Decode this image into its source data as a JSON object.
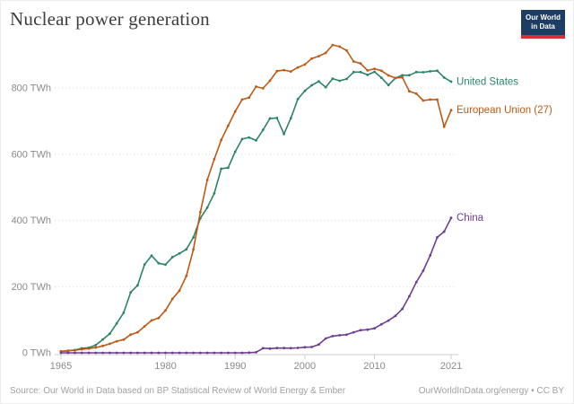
{
  "header": {
    "title": "Nuclear power generation"
  },
  "logo": {
    "line1": "Our World",
    "line2": "in Data",
    "bg_color": "#1d3d63",
    "bar_color": "#dc2e32"
  },
  "footer": {
    "source": "Source: Our World in Data based on BP Statistical Review of World Energy & Ember",
    "link": "OurWorldInData.org/energy • CC BY"
  },
  "chart_data": {
    "type": "line",
    "title": "Nuclear power generation",
    "unit": "TWh",
    "xlim": [
      1965,
      2021
    ],
    "ylim": [
      0,
      950
    ],
    "grid": "horizontal dotted",
    "legend_position": "right-of-line-ends",
    "y_ticks": [
      0,
      200,
      400,
      600,
      800
    ],
    "y_tick_labels": [
      "0 TWh",
      "200 TWh",
      "400 TWh",
      "600 TWh",
      "800 TWh"
    ],
    "x_ticks": [
      1965,
      1980,
      1990,
      2000,
      2010,
      2021
    ],
    "x_tick_labels": [
      "1965",
      "1980",
      "1990",
      "2000",
      "2010",
      "2021"
    ],
    "axis_color": "#cccccc",
    "grid_color": "#dadada",
    "tick_label_color": "#8a8a8a",
    "years": [
      1965,
      1966,
      1967,
      1968,
      1969,
      1970,
      1971,
      1972,
      1973,
      1974,
      1975,
      1976,
      1977,
      1978,
      1979,
      1980,
      1981,
      1982,
      1983,
      1984,
      1985,
      1986,
      1987,
      1988,
      1989,
      1990,
      1991,
      1992,
      1993,
      1994,
      1995,
      1996,
      1997,
      1998,
      1999,
      2000,
      2001,
      2002,
      2003,
      2004,
      2005,
      2006,
      2007,
      2008,
      2009,
      2010,
      2011,
      2012,
      2013,
      2014,
      2015,
      2016,
      2017,
      2018,
      2019,
      2020,
      2021
    ],
    "series": [
      {
        "name": "United States",
        "color": "#2C8465",
        "values": [
          3.9,
          6.4,
          8.3,
          13.8,
          15.5,
          23.3,
          40.5,
          57.7,
          88.8,
          121.1,
          182.8,
          203.6,
          266.8,
          293.7,
          270.7,
          266.4,
          289.2,
          300.3,
          312.6,
          348.6,
          406.5,
          438.6,
          481.6,
          556.3,
          559.3,
          607.4,
          645.7,
          650.6,
          641.6,
          673.4,
          708.0,
          709.4,
          661.0,
          709.0,
          766.3,
          791.6,
          808.2,
          819.8,
          802.5,
          828.3,
          821.8,
          827.4,
          848.1,
          848.0,
          839.7,
          848.9,
          830.9,
          808.7,
          829.7,
          838.5,
          838.4,
          848.0,
          847.5,
          850.5,
          852.0,
          831.5,
          819.2
        ]
      },
      {
        "name": "European Union (27)",
        "color": "#BE5915",
        "values": [
          4.5,
          6.0,
          8.0,
          10.5,
          13.0,
          16.0,
          21.0,
          27.0,
          35.0,
          40.0,
          55.0,
          62.0,
          80.0,
          98.0,
          105.0,
          128.0,
          163.0,
          188.0,
          232.0,
          312.0,
          425.0,
          522.0,
          585.0,
          643.0,
          686.0,
          729.0,
          765.0,
          771.0,
          804.0,
          799.0,
          822.0,
          851.0,
          854.0,
          850.0,
          862.0,
          871.0,
          889.0,
          896.0,
          906.0,
          930.0,
          925.0,
          913.0,
          880.0,
          874.0,
          853.0,
          858.0,
          852.0,
          838.0,
          830.0,
          832.0,
          790.0,
          783.0,
          762.0,
          765.0,
          765.0,
          683.0,
          733.0
        ]
      },
      {
        "name": "China",
        "color": "#6D3E91",
        "values": [
          0,
          0,
          0,
          0,
          0,
          0,
          0,
          0,
          0,
          0,
          0,
          0,
          0,
          0,
          0,
          0,
          0,
          0,
          0,
          0,
          0,
          0,
          0,
          0,
          0,
          0,
          0.1,
          0.5,
          1.5,
          14.0,
          12.8,
          14.4,
          14.4,
          14.1,
          15.0,
          16.7,
          17.5,
          25.3,
          43.4,
          50.5,
          53.1,
          54.8,
          62.1,
          68.4,
          70.1,
          73.9,
          86.3,
          97.4,
          111.6,
          132.5,
          170.8,
          213.3,
          248.1,
          294.4,
          348.7,
          366.2,
          407.5
        ]
      }
    ]
  }
}
